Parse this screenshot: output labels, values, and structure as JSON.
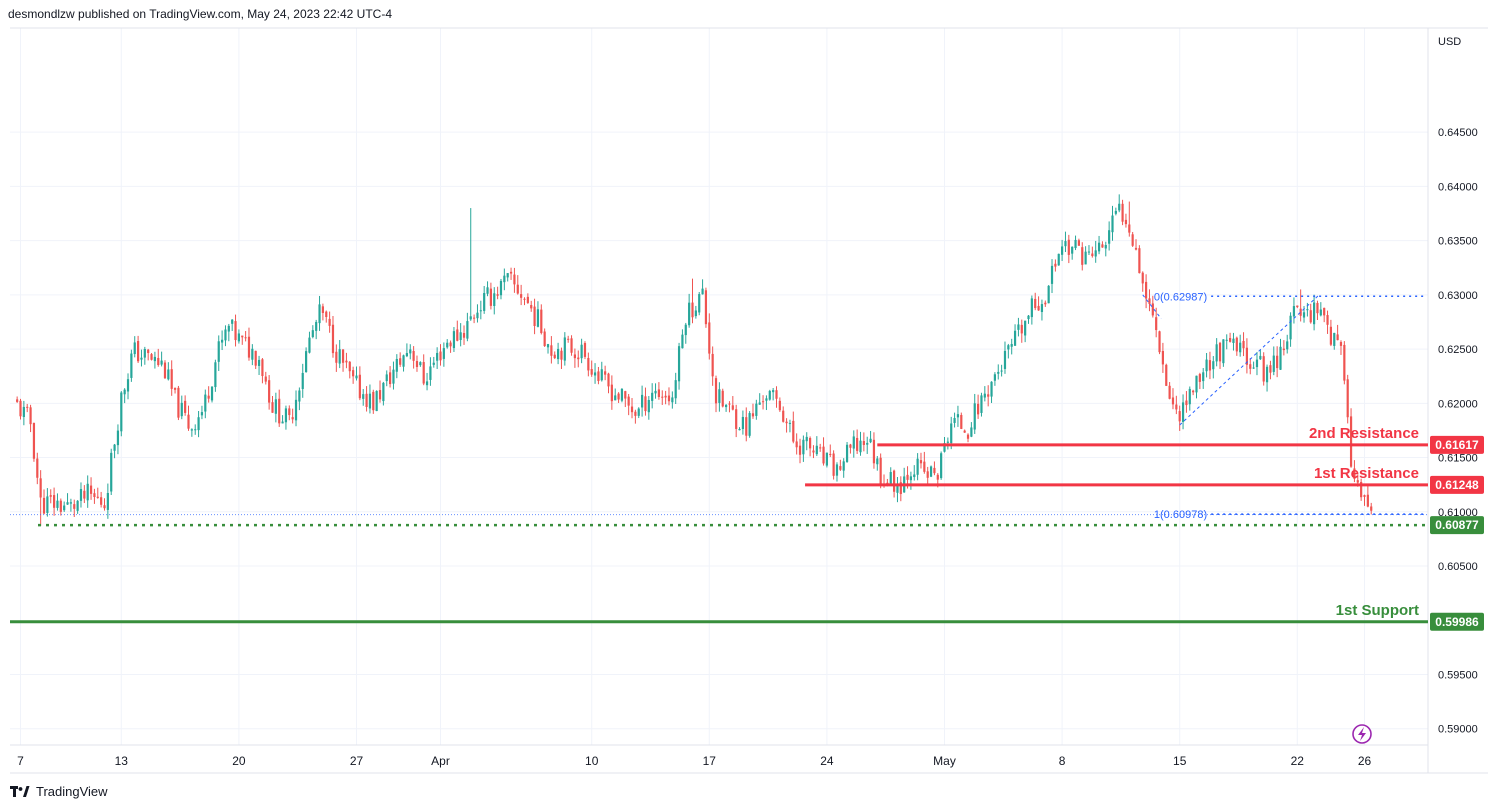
{
  "header": {
    "published_text": "desmondlzw published on TradingView.com, May 24, 2023 22:42 UTC-4"
  },
  "footer": {
    "brand": "TradingView",
    "logo_icon": "tradingview-logo-icon"
  },
  "colors": {
    "bull": "#26a69a",
    "bear": "#ef5350",
    "resistance": "#f23645",
    "support": "#388e3c",
    "fib": "#2962ff",
    "grid": "#f0f3fa"
  },
  "chart_data": {
    "type": "candlestick",
    "currency": "USD",
    "ylim": [
      0.5885,
      0.6546
    ],
    "y_ticks": [
      {
        "value": 0.645,
        "label": "0.64500"
      },
      {
        "value": 0.64,
        "label": "0.64000"
      },
      {
        "value": 0.635,
        "label": "0.63500"
      },
      {
        "value": 0.63,
        "label": "0.63000"
      },
      {
        "value": 0.625,
        "label": "0.62500"
      },
      {
        "value": 0.62,
        "label": "0.62000"
      },
      {
        "value": 0.615,
        "label": "0.61500"
      },
      {
        "value": 0.61,
        "label": "0.61000"
      },
      {
        "value": 0.605,
        "label": "0.60500"
      },
      {
        "value": 0.595,
        "label": "0.59500"
      },
      {
        "value": 0.59,
        "label": "0.59000"
      }
    ],
    "x_ticks": [
      {
        "day": 0,
        "label": "7"
      },
      {
        "day": 6,
        "label": "13"
      },
      {
        "day": 13,
        "label": "20"
      },
      {
        "day": 20,
        "label": "27"
      },
      {
        "day": 25,
        "label": "Apr"
      },
      {
        "day": 34,
        "label": "10"
      },
      {
        "day": 41,
        "label": "17"
      },
      {
        "day": 48,
        "label": "24"
      },
      {
        "day": 55,
        "label": "May"
      },
      {
        "day": 62,
        "label": "8"
      },
      {
        "day": 69,
        "label": "15"
      },
      {
        "day": 76,
        "label": "22"
      },
      {
        "day": 80,
        "label": "26"
      }
    ],
    "price_path": [
      [
        -0.4,
        0.6202
      ],
      [
        0.6,
        0.6182
      ],
      [
        1.2,
        0.6108
      ],
      [
        2.0,
        0.6108
      ],
      [
        3.0,
        0.6104
      ],
      [
        4.0,
        0.6115
      ],
      [
        5.0,
        0.6108
      ],
      [
        6.0,
        0.6205
      ],
      [
        6.7,
        0.6248
      ],
      [
        7.6,
        0.6242
      ],
      [
        8.5,
        0.6235
      ],
      [
        9.2,
        0.6202
      ],
      [
        10.1,
        0.6178
      ],
      [
        10.9,
        0.6195
      ],
      [
        11.7,
        0.6245
      ],
      [
        12.4,
        0.627
      ],
      [
        13.2,
        0.6255
      ],
      [
        14.2,
        0.6243
      ],
      [
        15.0,
        0.6198
      ],
      [
        16.0,
        0.6182
      ],
      [
        17.2,
        0.6258
      ],
      [
        17.9,
        0.6285
      ],
      [
        18.8,
        0.6248
      ],
      [
        19.8,
        0.6218
      ],
      [
        21.0,
        0.62
      ],
      [
        22.3,
        0.6232
      ],
      [
        23.2,
        0.6253
      ],
      [
        24.0,
        0.6222
      ],
      [
        25.3,
        0.6255
      ],
      [
        26.4,
        0.6268
      ],
      [
        27.3,
        0.629
      ],
      [
        28.2,
        0.6302
      ],
      [
        29.0,
        0.6313
      ],
      [
        29.9,
        0.63
      ],
      [
        30.8,
        0.6276
      ],
      [
        31.6,
        0.625
      ],
      [
        32.6,
        0.6252
      ],
      [
        33.5,
        0.6247
      ],
      [
        34.5,
        0.6222
      ],
      [
        35.5,
        0.6208
      ],
      [
        36.7,
        0.6191
      ],
      [
        37.6,
        0.6212
      ],
      [
        38.8,
        0.6205
      ],
      [
        39.6,
        0.6282
      ],
      [
        40.6,
        0.63
      ],
      [
        41.4,
        0.6205
      ],
      [
        42.3,
        0.6192
      ],
      [
        43.2,
        0.6178
      ],
      [
        44.3,
        0.621
      ],
      [
        45.3,
        0.6196
      ],
      [
        46.0,
        0.6165
      ],
      [
        46.9,
        0.616
      ],
      [
        47.7,
        0.6148
      ],
      [
        48.6,
        0.6138
      ],
      [
        49.5,
        0.6158
      ],
      [
        50.4,
        0.6168
      ],
      [
        51.3,
        0.6132
      ],
      [
        52.3,
        0.6125
      ],
      [
        53.1,
        0.6144
      ],
      [
        53.9,
        0.6134
      ],
      [
        54.6,
        0.6135
      ],
      [
        55.4,
        0.6183
      ],
      [
        56.4,
        0.6178
      ],
      [
        57.5,
        0.6212
      ],
      [
        58.5,
        0.6238
      ],
      [
        59.4,
        0.6262
      ],
      [
        60.2,
        0.6286
      ],
      [
        61.1,
        0.6302
      ],
      [
        61.9,
        0.6348
      ],
      [
        62.8,
        0.6342
      ],
      [
        63.6,
        0.6335
      ],
      [
        64.5,
        0.6345
      ],
      [
        65.3,
        0.6378
      ],
      [
        65.9,
        0.6372
      ],
      [
        66.4,
        0.6342
      ],
      [
        67.0,
        0.63
      ],
      [
        67.7,
        0.6265
      ],
      [
        68.3,
        0.6212
      ],
      [
        68.8,
        0.619
      ],
      [
        69.5,
        0.6205
      ],
      [
        70.4,
        0.6232
      ],
      [
        71.3,
        0.6248
      ],
      [
        72.2,
        0.6252
      ],
      [
        73.2,
        0.6242
      ],
      [
        74.2,
        0.6228
      ],
      [
        75.0,
        0.6248
      ],
      [
        75.8,
        0.6282
      ],
      [
        76.7,
        0.6285
      ],
      [
        77.5,
        0.629
      ],
      [
        78.0,
        0.6262
      ],
      [
        78.5,
        0.6248
      ],
      [
        78.9,
        0.6225
      ],
      [
        79.2,
        0.614
      ],
      [
        79.6,
        0.612
      ],
      [
        80.1,
        0.61
      ],
      [
        80.4,
        0.6098
      ]
    ],
    "spikes": [
      {
        "day": 1.1,
        "value": 0.6087
      },
      {
        "day": 26.7,
        "value": 0.638
      },
      {
        "day": 40.1,
        "value": 0.6315
      },
      {
        "day": 66.0,
        "value": 0.6386
      },
      {
        "day": 76.2,
        "value": 0.6305
      }
    ],
    "levels": [
      {
        "name": "2nd Resistance",
        "label": "2nd Resistance",
        "value": 0.61617,
        "tag": "0.61617",
        "from_day": 51.0,
        "kind": "resistance"
      },
      {
        "name": "1st Resistance",
        "label": "1st Resistance",
        "value": 0.61248,
        "tag": "0.61248",
        "from_day": 46.7,
        "kind": "resistance"
      },
      {
        "name": "1st Support",
        "label": "1st Support",
        "value": 0.59986,
        "tag": "0.59986",
        "from_day": -0.5,
        "kind": "support"
      }
    ],
    "current_price": {
      "value": 0.60877,
      "tag": "0.60877"
    },
    "fibonacci": [
      {
        "label": "0(0.62987)",
        "value": 0.62987,
        "from_day": 67.3
      },
      {
        "label": "1(0.60978)",
        "value": 0.60978,
        "from_day": 67.3
      }
    ],
    "fib_anchor_line": [
      [
        69.0,
        0.618
      ],
      [
        77.3,
        0.63
      ]
    ],
    "fib_top_dash": [
      [
        66.8,
        0.63
      ],
      [
        67.9,
        0.6278
      ]
    ]
  }
}
